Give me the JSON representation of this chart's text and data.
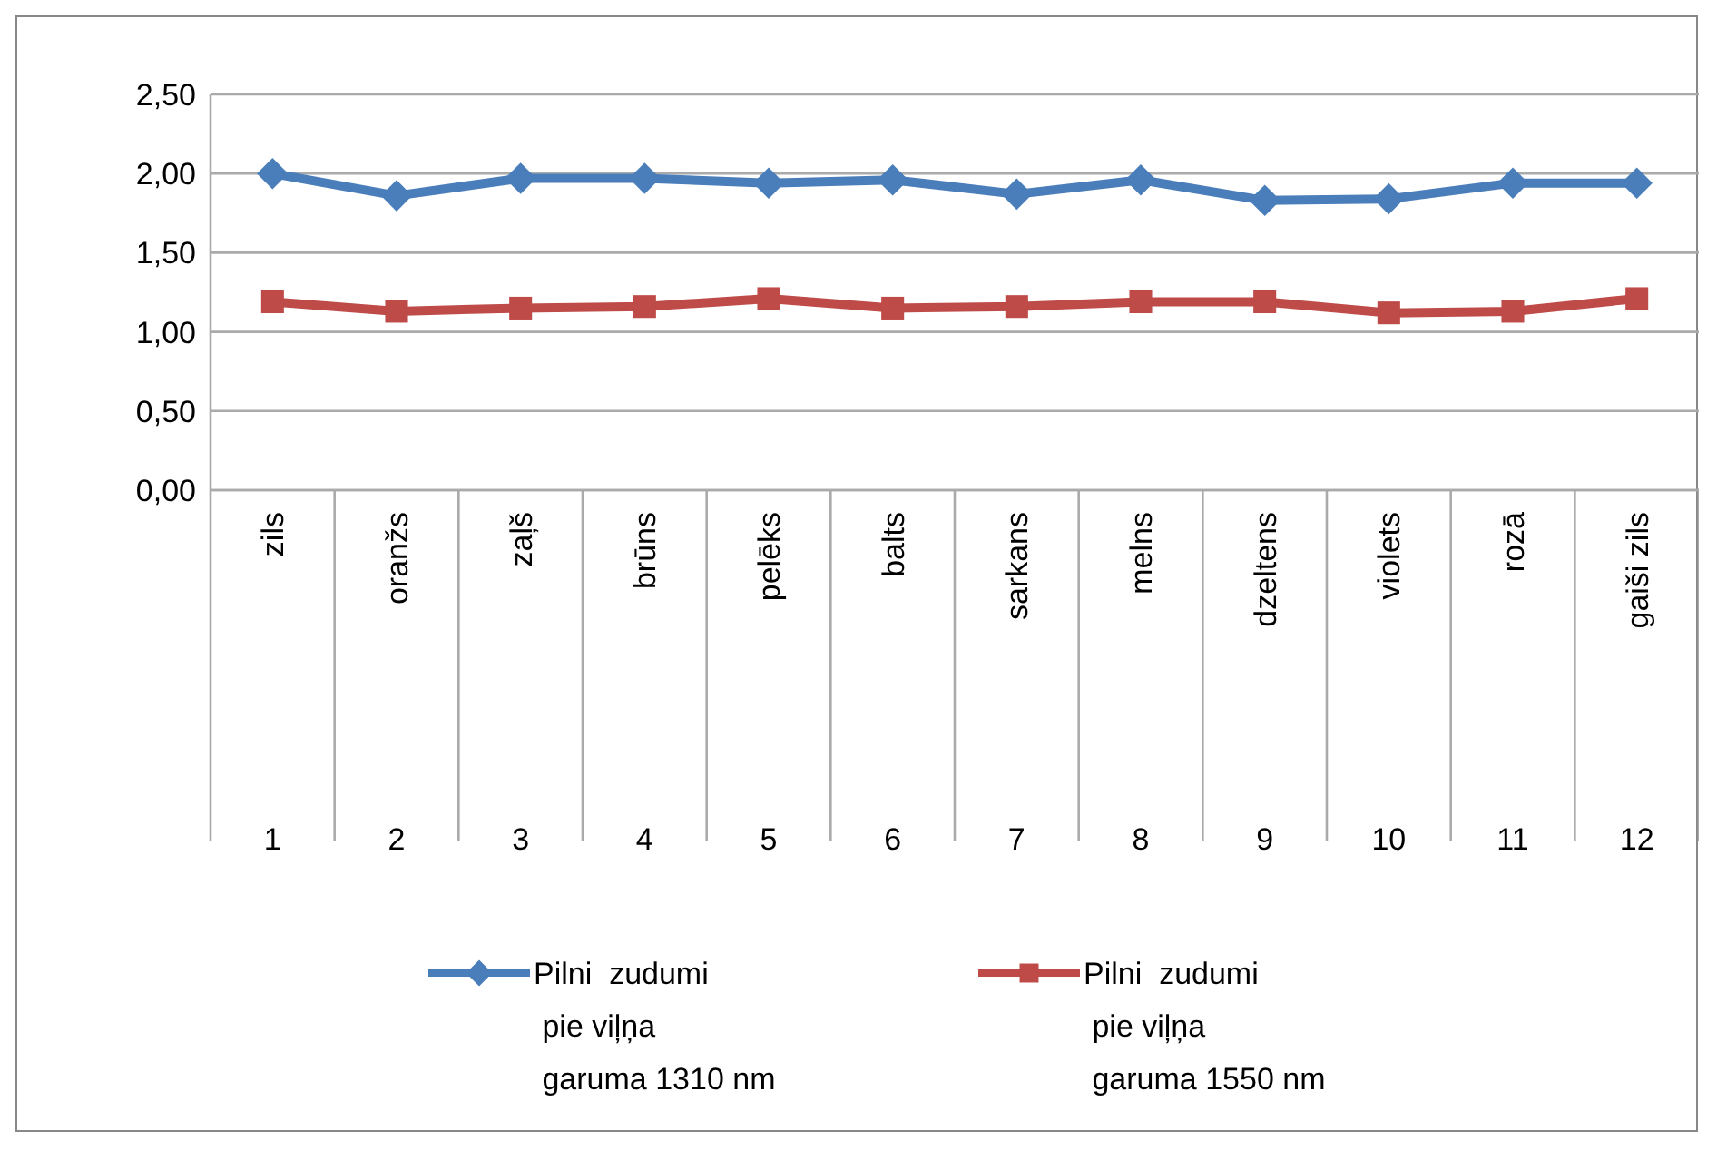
{
  "chart_data": {
    "type": "line",
    "categories": [
      "zils\n1",
      "oranžs\n2",
      "zaļš\n3",
      "brūns\n4",
      "pelēks\n5",
      "balts\n6",
      "sarkans\n7",
      "melns\n8",
      "dzeltens\n9",
      "violets\n10",
      "rozā\n11",
      "gaiši zils\n12"
    ],
    "series": [
      {
        "name": "Pilni  zudumi\n pie viļņa\n garuma 1310 nm",
        "color": "#4a7ebb",
        "marker": "diamond",
        "values": [
          2.0,
          1.86,
          1.97,
          1.97,
          1.94,
          1.96,
          1.87,
          1.96,
          1.83,
          1.84,
          1.94,
          1.94
        ]
      },
      {
        "name": "Pilni  zudumi\n pie viļņa\n garuma 1550 nm",
        "color": "#be4b48",
        "marker": "square",
        "values": [
          1.19,
          1.13,
          1.15,
          1.16,
          1.21,
          1.15,
          1.16,
          1.19,
          1.19,
          1.12,
          1.13,
          1.21
        ]
      }
    ],
    "ylim": [
      0,
      2.5
    ],
    "yticks": [
      {
        "value": 0,
        "label": "0,00"
      },
      {
        "value": 0.5,
        "label": "0,50"
      },
      {
        "value": 1,
        "label": "1,00"
      },
      {
        "value": 1.5,
        "label": "1,50"
      },
      {
        "value": 2,
        "label": "2,00"
      },
      {
        "value": 2.5,
        "label": "2,50"
      }
    ],
    "grid": "y",
    "legend": "bottom"
  }
}
